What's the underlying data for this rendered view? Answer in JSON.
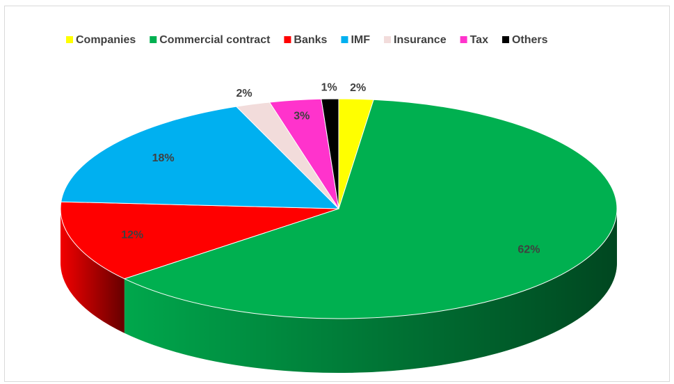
{
  "chart_data": {
    "type": "pie3d",
    "categories": [
      "Companies",
      "Commercial contract",
      "Banks",
      "IMF",
      "Insurance",
      "Tax",
      "Others"
    ],
    "values": [
      2,
      62,
      12,
      18,
      2,
      3,
      1
    ],
    "value_labels": [
      "2%",
      "62%",
      "12%",
      "18%",
      "2%",
      "3%",
      "1%"
    ],
    "colors": [
      "#ffff00",
      "#00b050",
      "#ff0000",
      "#00b0f0",
      "#f2dcdb",
      "#ff33cc",
      "#000000"
    ],
    "legend": "top"
  }
}
